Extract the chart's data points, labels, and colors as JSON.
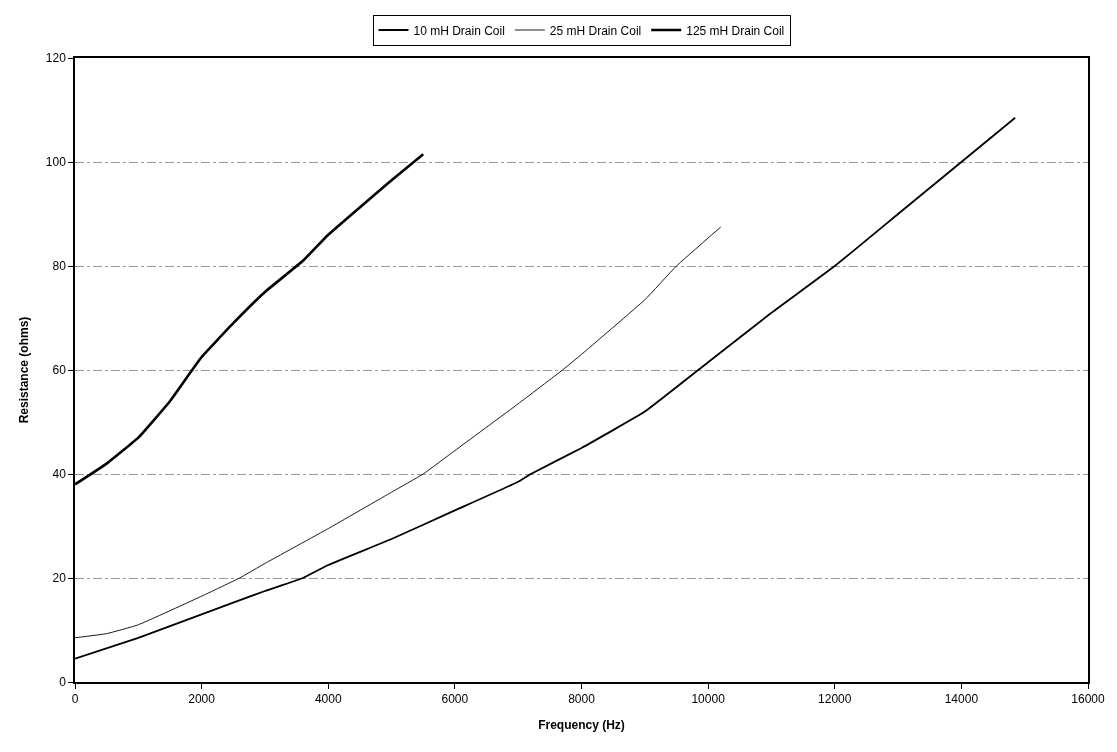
{
  "chart_data": {
    "type": "line",
    "xlabel": "Frequency (Hz)",
    "ylabel": "Resistance (ohms)",
    "xlim": [
      0,
      16000
    ],
    "xticks": [
      0,
      2000,
      4000,
      6000,
      8000,
      10000,
      12000,
      14000,
      16000
    ],
    "ylim": [
      0,
      120
    ],
    "yticks": [
      0,
      20,
      40,
      60,
      80,
      100,
      120
    ],
    "grid": "y",
    "legend": "top",
    "marker": "none",
    "line_style": "solid",
    "series": [
      {
        "name": "10 mH Drain Coil",
        "color": "#000000",
        "x": [
          0,
          1000,
          2000,
          3000,
          3600,
          4000,
          5000,
          6000,
          7000,
          7200,
          8000,
          9000,
          10000,
          11000,
          12000,
          13000,
          14000,
          14850
        ],
        "values": [
          4.5,
          8.5,
          13,
          17.5,
          20,
          22.5,
          27.5,
          33,
          38.5,
          40,
          45,
          52,
          61.5,
          71,
          80,
          90,
          100,
          108.5
        ]
      },
      {
        "name": "25 mH Drain Coil",
        "color": "#000000",
        "x": [
          0,
          500,
          1000,
          2000,
          2600,
          3000,
          4000,
          5000,
          5500,
          6000,
          7000,
          7700,
          8000,
          9000,
          9500,
          10200
        ],
        "values": [
          8.5,
          9.3,
          11,
          16.5,
          20,
          22.8,
          29.5,
          36.5,
          40,
          44.5,
          53.5,
          60,
          63,
          73.5,
          80,
          87.5
        ]
      },
      {
        "name": "125 mH Drain Coil",
        "color": "#000000",
        "x": [
          0,
          500,
          1000,
          1500,
          1850,
          2000,
          2500,
          3000,
          3600,
          4000,
          5000,
          5500
        ],
        "values": [
          38,
          42,
          47,
          54,
          60,
          62.5,
          69,
          75,
          81,
          86,
          96.5,
          101.5
        ]
      }
    ]
  }
}
